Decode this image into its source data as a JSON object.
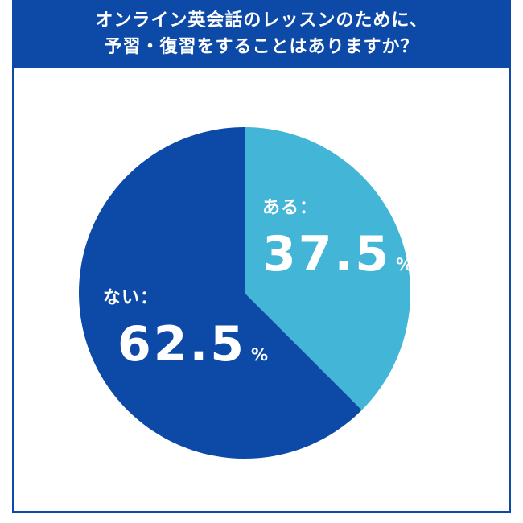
{
  "title": {
    "line1": "オンライン英会話のレッスンのために、",
    "line2": "予習・復習をすることはありますか？"
  },
  "colors": {
    "header_bg": "#0d4aa8",
    "slice_aru": "#43b6d8",
    "slice_nai": "#0d4aa8"
  },
  "slice_labels": {
    "aru": {
      "label": "ある：",
      "value": "37.5",
      "unit": "%"
    },
    "nai": {
      "label": "ない：",
      "value": "62.5",
      "unit": "%"
    }
  },
  "chart_data": {
    "type": "pie",
    "title": "オンライン英会話のレッスンのために、予習・復習をすることはありますか？",
    "categories": [
      "ある",
      "ない"
    ],
    "values": [
      37.5,
      62.5
    ],
    "unit": "%",
    "start": "12 o'clock",
    "direction": "clockwise"
  }
}
